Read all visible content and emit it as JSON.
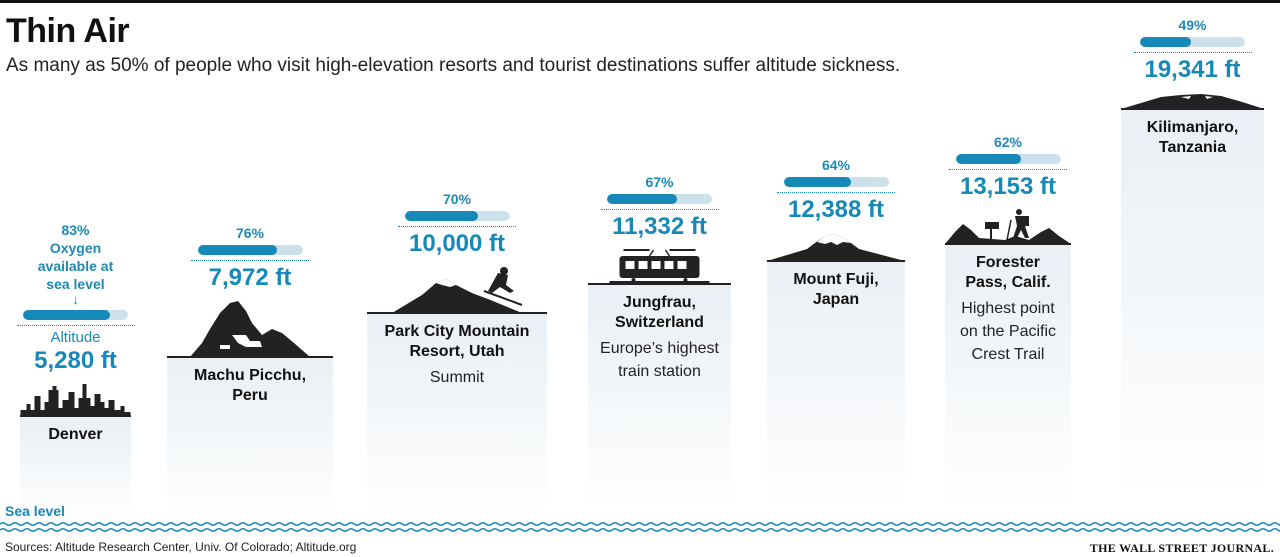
{
  "title": "Thin Air",
  "subtitle": "As many as 50% of people who visit high-elevation resorts and tourist destinations suffer altitude sickness.",
  "sea_level_label": "Sea level",
  "sources": "Sources: Altitude Research Center, Univ. Of Colorado; Altitude.org",
  "brand": "THE WALL STREET JOURNAL.",
  "denver_notes": {
    "oxygen": [
      "Oxygen",
      "available at",
      "sea level"
    ],
    "altitude": "Altitude"
  },
  "colors": {
    "accent": "#1789b8",
    "bar_track": "#cde1ec",
    "column": "#e9eff4"
  },
  "chart_data": {
    "type": "bar",
    "title": "Thin Air",
    "categories": [
      "Denver",
      "Machu Picchu, Peru",
      "Park City Mountain Resort, Utah",
      "Jungfrau, Switzerland",
      "Mount Fuji, Japan",
      "Forester Pass, Calif.",
      "Kilimanjaro, Tanzania"
    ],
    "series": [
      {
        "values": [
          5280,
          7972,
          10000,
          11332,
          12388,
          13153,
          19341
        ]
      },
      {
        "values": [
          83,
          76,
          70,
          67,
          64,
          62,
          49
        ]
      }
    ],
    "places": [
      {
        "name": [
          "Denver"
        ],
        "note": [],
        "elevation": 5280,
        "elevation_label": "5,280 ft",
        "oxygen": 83,
        "oxygen_label": "83%",
        "icon": "city-skyline-icon"
      },
      {
        "name": [
          "Machu Picchu,",
          "Peru"
        ],
        "note": [],
        "elevation": 7972,
        "elevation_label": "7,972 ft",
        "oxygen": 76,
        "oxygen_label": "76%",
        "icon": "machu-picchu-icon"
      },
      {
        "name": [
          "Park City Mountain",
          "Resort, Utah"
        ],
        "note": [
          "Summit"
        ],
        "elevation": 10000,
        "elevation_label": "10,000 ft",
        "oxygen": 70,
        "oxygen_label": "70%",
        "icon": "skier-mountain-icon"
      },
      {
        "name": [
          "Jungfrau,",
          "Switzerland"
        ],
        "note": [
          "Europe’s highest",
          "train station"
        ],
        "elevation": 11332,
        "elevation_label": "11,332 ft",
        "oxygen": 67,
        "oxygen_label": "67%",
        "icon": "train-icon"
      },
      {
        "name": [
          "Mount Fuji,",
          "Japan"
        ],
        "note": [],
        "elevation": 12388,
        "elevation_label": "12,388 ft",
        "oxygen": 64,
        "oxygen_label": "64%",
        "icon": "mount-fuji-icon"
      },
      {
        "name": [
          "Forester",
          "Pass, Calif."
        ],
        "note": [
          "Highest point",
          "on the Pacific",
          "Crest Trail"
        ],
        "elevation": 13153,
        "elevation_label": "13,153 ft",
        "oxygen": 62,
        "oxygen_label": "62%",
        "icon": "hiker-icon"
      },
      {
        "name": [
          "Kilimanjaro,",
          "Tanzania"
        ],
        "note": [],
        "elevation": 19341,
        "elevation_label": "19,341 ft",
        "oxygen": 49,
        "oxygen_label": "49%",
        "icon": "kilimanjaro-icon"
      }
    ]
  }
}
